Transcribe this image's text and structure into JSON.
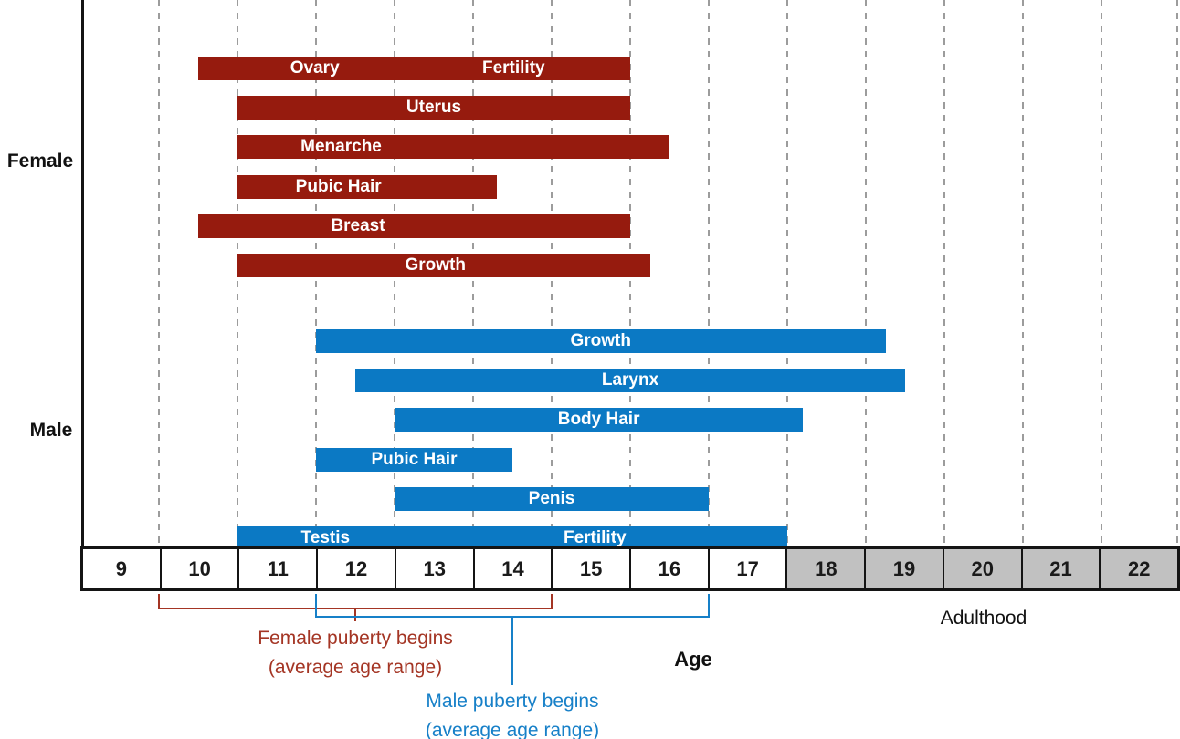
{
  "chart_data": {
    "type": "bar",
    "variant": "horizontal-range-gantt",
    "xlabel": "Age",
    "x_range": [
      9,
      23
    ],
    "x_ticks": [
      9,
      10,
      11,
      12,
      13,
      14,
      15,
      16,
      17,
      18,
      19,
      20,
      21,
      22
    ],
    "grid": "dashed vertical line at every age boundary",
    "legend_position": "none",
    "adulthood": {
      "label": "Adulthood",
      "start_age": 18,
      "end_age": 23,
      "cell_fill": "#c1c1c1"
    },
    "groups": [
      {
        "label": "Female",
        "bar_color": "#961b0e",
        "bars": [
          {
            "labels": [
              "Ovary",
              "Fertility"
            ],
            "label_pos": [
              0.27,
              0.73
            ],
            "start_age": 10.5,
            "end_age": 16
          },
          {
            "labels": [
              "Uterus"
            ],
            "label_pos": [
              0.5
            ],
            "start_age": 11,
            "end_age": 16
          },
          {
            "labels": [
              "Menarche"
            ],
            "label_pos": [
              0.24
            ],
            "start_age": 11,
            "end_age": 16.5
          },
          {
            "labels": [
              "Pubic Hair"
            ],
            "label_pos": [
              0.39
            ],
            "start_age": 11,
            "end_age": 14.3
          },
          {
            "labels": [
              "Breast"
            ],
            "label_pos": [
              0.37
            ],
            "start_age": 10.5,
            "end_age": 16
          },
          {
            "labels": [
              "Growth"
            ],
            "label_pos": [
              0.48
            ],
            "start_age": 11,
            "end_age": 16.25
          }
        ]
      },
      {
        "label": "Male",
        "bar_color": "#0b79c4",
        "bars": [
          {
            "labels": [
              "Growth"
            ],
            "label_pos": [
              0.5
            ],
            "start_age": 12,
            "end_age": 19.25
          },
          {
            "labels": [
              "Larynx"
            ],
            "label_pos": [
              0.5
            ],
            "start_age": 12.5,
            "end_age": 19.5
          },
          {
            "labels": [
              "Body Hair"
            ],
            "label_pos": [
              0.5
            ],
            "start_age": 13,
            "end_age": 18.2
          },
          {
            "labels": [
              "Pubic Hair"
            ],
            "label_pos": [
              0.5
            ],
            "start_age": 12,
            "end_age": 14.5
          },
          {
            "labels": [
              "Penis"
            ],
            "label_pos": [
              0.5
            ],
            "start_age": 13,
            "end_age": 17
          },
          {
            "labels": [
              "Testis",
              "Fertility"
            ],
            "label_pos": [
              0.16,
              0.65
            ],
            "start_age": 11,
            "end_age": 18
          }
        ]
      }
    ],
    "annotations": [
      {
        "text_lines": [
          "Female puberty begins",
          "(average age range)"
        ],
        "start_age": 10,
        "end_age": 15,
        "color": "#a43524"
      },
      {
        "text_lines": [
          "Male puberty begins",
          "(average age range)"
        ],
        "start_age": 12,
        "end_age": 17,
        "color": "#1780c8"
      }
    ]
  }
}
